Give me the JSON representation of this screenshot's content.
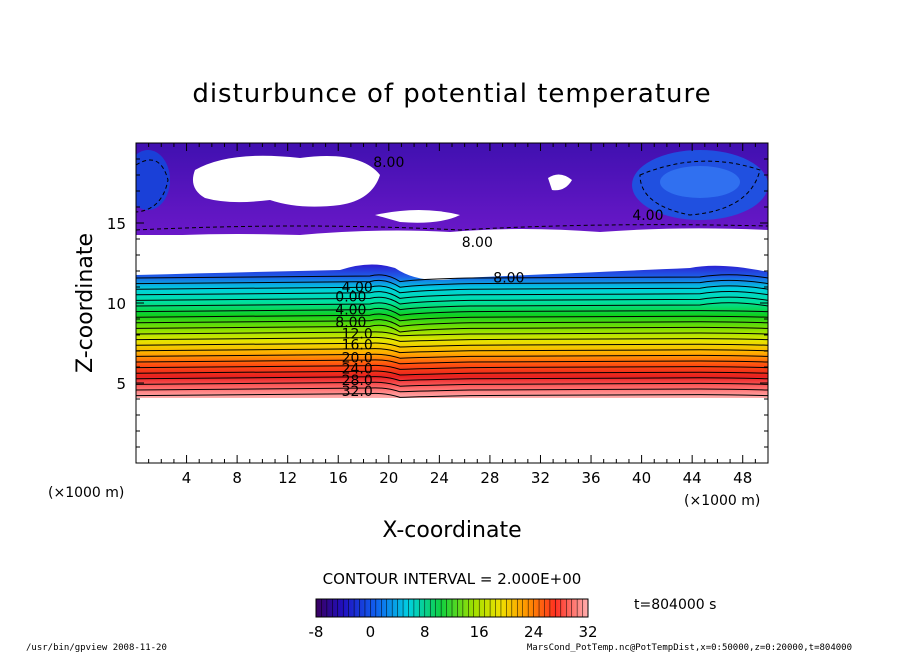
{
  "chart_data": {
    "type": "contour",
    "title": "disturbunce of potential temperature",
    "xlabel": "X-coordinate",
    "ylabel": "Z-coordinate",
    "x_unit_label_left": "(×1000 m)",
    "x_unit_label_right": "(×1000 m)",
    "xlim": [
      0,
      50
    ],
    "ylim": [
      0,
      20
    ],
    "x_ticks": [
      "4",
      "8",
      "12",
      "16",
      "20",
      "24",
      "28",
      "32",
      "36",
      "40",
      "44",
      "48"
    ],
    "y_ticks": [
      "5",
      "10",
      "15"
    ],
    "contour_interval_text": "CONTOUR INTERVAL = 2.000E+00",
    "time_text": "t=804000 s",
    "colorbar": {
      "min": -8,
      "max": 32,
      "ticks": [
        "-8",
        "0",
        "8",
        "16",
        "24",
        "32"
      ]
    },
    "contour_labels": [
      {
        "text": "8.00",
        "x": 20.0,
        "z": 18.8
      },
      {
        "text": "4.00",
        "x": 40.5,
        "z": 15.5
      },
      {
        "text": "8.00",
        "x": 27.0,
        "z": 13.8
      },
      {
        "text": "8.00",
        "x": 29.5,
        "z": 11.6
      },
      {
        "text": "4.00",
        "x": 17.5,
        "z": 11.0
      },
      {
        "text": "0.00",
        "x": 17.0,
        "z": 10.4
      },
      {
        "text": "4.00",
        "x": 17.0,
        "z": 9.6
      },
      {
        "text": "8.00",
        "x": 17.0,
        "z": 8.8
      },
      {
        "text": "12.0",
        "x": 17.5,
        "z": 8.1
      },
      {
        "text": "16.0",
        "x": 17.5,
        "z": 7.4
      },
      {
        "text": "20.0",
        "x": 17.5,
        "z": 6.6
      },
      {
        "text": "24.0",
        "x": 17.5,
        "z": 5.9
      },
      {
        "text": "28.0",
        "x": 17.5,
        "z": 5.2
      },
      {
        "text": "32.0",
        "x": 17.5,
        "z": 4.5
      }
    ]
  },
  "footer": {
    "left": "/usr/bin/gpview  2008-11-20",
    "right": "MarsCond_PotTemp.nc@PotTempDist,x=0:50000,z=0:20000,t=804000"
  }
}
